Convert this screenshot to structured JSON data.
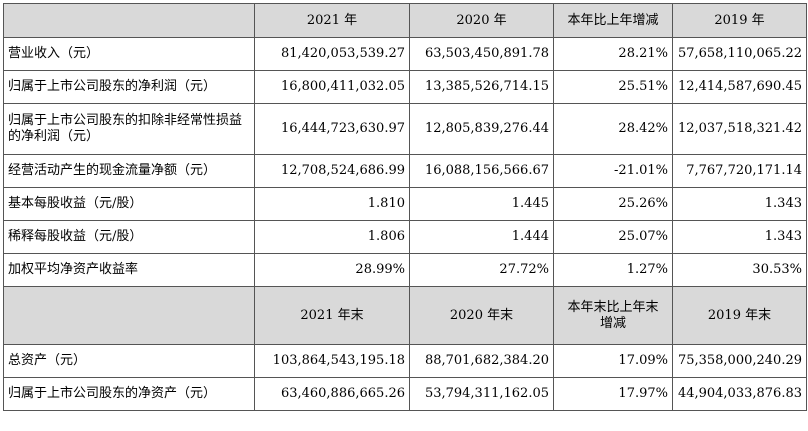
{
  "header1": [
    "",
    "2021 年",
    "2020 年",
    "本年比上年增减",
    "2019 年"
  ],
  "rows1": [
    {
      "label": "营业收入（元）",
      "v2021": "81,420,053,539.27",
      "v2020": "63,503,450,891.78",
      "chg": "28.21%",
      "v2019": "57,658,110,065.22"
    },
    {
      "label": "归属于上市公司股东的净利润（元）",
      "v2021": "16,800,411,032.05",
      "v2020": "13,385,526,714.15",
      "chg": "25.51%",
      "v2019": "12,414,587,690.45"
    },
    {
      "label": "归属于上市公司股东的扣除非经常性损益的净利润（元）",
      "v2021": "16,444,723,630.97",
      "v2020": "12,805,839,276.44",
      "chg": "28.42%",
      "v2019": "12,037,518,321.42"
    },
    {
      "label": "经营活动产生的现金流量净额（元）",
      "v2021": "12,708,524,686.99",
      "v2020": "16,088,156,566.67",
      "chg": "-21.01%",
      "v2019": "7,767,720,171.14"
    },
    {
      "label": "基本每股收益（元/股）",
      "v2021": "1.810",
      "v2020": "1.445",
      "chg": "25.26%",
      "v2019": "1.343"
    },
    {
      "label": "稀释每股收益（元/股）",
      "v2021": "1.806",
      "v2020": "1.444",
      "chg": "25.07%",
      "v2019": "1.343"
    },
    {
      "label": "加权平均净资产收益率",
      "v2021": "28.99%",
      "v2020": "27.72%",
      "chg": "1.27%",
      "v2019": "30.53%"
    }
  ],
  "header2": [
    "",
    "2021 年末",
    "2020 年末",
    "本年末比上年末增减",
    "2019 年末"
  ],
  "rows2": [
    {
      "label": "总资产（元）",
      "v2021": "103,864,543,195.18",
      "v2020": "88,701,682,384.20",
      "chg": "17.09%",
      "v2019": "75,358,000,240.29"
    },
    {
      "label": "归属于上市公司股东的净资产（元）",
      "v2021": "63,460,886,665.26",
      "v2020": "53,794,311,162.05",
      "chg": "17.97%",
      "v2019": "44,904,033,876.83"
    }
  ]
}
